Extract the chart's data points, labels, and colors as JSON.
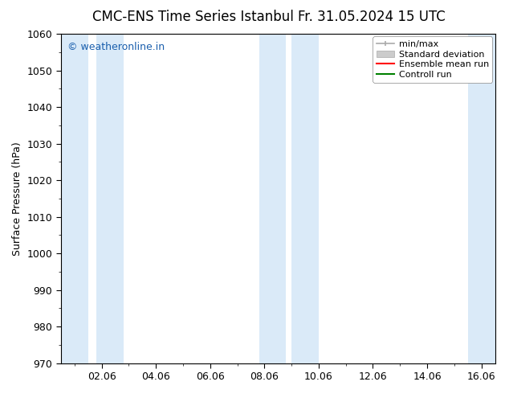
{
  "title_left": "CMC-ENS Time Series Istanbul",
  "title_right": "Fr. 31.05.2024 15 UTC",
  "ylabel": "Surface Pressure (hPa)",
  "ylim": [
    970,
    1060
  ],
  "yticks": [
    970,
    980,
    990,
    1000,
    1010,
    1020,
    1030,
    1040,
    1050,
    1060
  ],
  "xlabel": "",
  "xtick_labels": [
    "02.06",
    "04.06",
    "06.06",
    "08.06",
    "10.06",
    "12.06",
    "14.06",
    "16.06"
  ],
  "xtick_positions": [
    2,
    4,
    6,
    8,
    10,
    12,
    14,
    16
  ],
  "xlim": [
    0.5,
    16.5
  ],
  "shaded_bands": [
    {
      "x_start": 0.5,
      "x_end": 1.5
    },
    {
      "x_start": 1.8,
      "x_end": 2.8
    },
    {
      "x_start": 7.8,
      "x_end": 8.8
    },
    {
      "x_start": 9.0,
      "x_end": 10.0
    },
    {
      "x_start": 15.5,
      "x_end": 16.5
    }
  ],
  "shade_color": "#daeaf8",
  "watermark_text": "© weatheronline.in",
  "watermark_color": "#1a5fad",
  "legend_labels": [
    "min/max",
    "Standard deviation",
    "Ensemble mean run",
    "Controll run"
  ],
  "legend_colors": [
    "#aaaaaa",
    "#cccccc",
    "#ff0000",
    "#008000"
  ],
  "background_color": "#ffffff",
  "plot_bg_color": "#ffffff",
  "title_fontsize": 12,
  "axis_fontsize": 9,
  "tick_fontsize": 9,
  "legend_fontsize": 8
}
